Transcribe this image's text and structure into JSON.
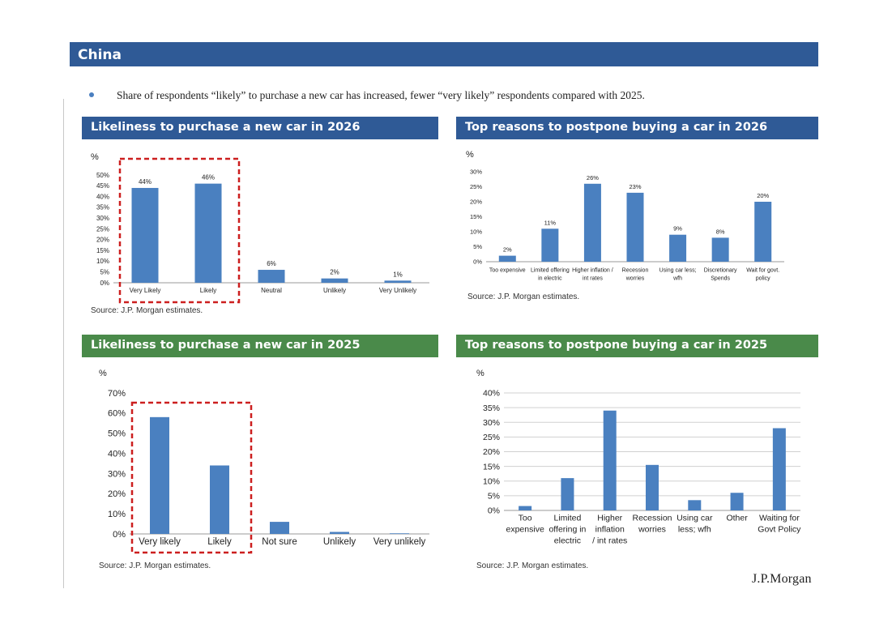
{
  "region_title": "China",
  "bullet": "Share of respondents “likely” to purchase a new car has increased, fewer “very likely” respondents compared with 2025.",
  "logo": "J.P.Morgan",
  "panels": {
    "p1": {
      "title": "Likeliness to purchase a new car in 2026",
      "unit": "%",
      "source": "Source: J.P. Morgan estimates.",
      "header_color": "#2f5a96"
    },
    "p2": {
      "title": "Top reasons to postpone buying a car in 2026",
      "unit": "%",
      "source": "Source: J.P. Morgan estimates.",
      "header_color": "#2f5a96"
    },
    "p3": {
      "title": "Likeliness to purchase a new car in 2025",
      "unit": "%",
      "source": "Source: J.P. Morgan estimates.",
      "header_color": "#4a8a4a"
    },
    "p4": {
      "title": "Top reasons to postpone buying a car in 2025",
      "unit": "%",
      "source": "Source: J.P. Morgan estimates.",
      "header_color": "#4a8a4a"
    }
  },
  "chart_data": [
    {
      "id": "c1",
      "type": "bar",
      "title": "Likeliness to purchase a new car in 2026",
      "ylabel": "%",
      "categories": [
        [
          "Very Likely"
        ],
        [
          "Likely"
        ],
        [
          "Neutral"
        ],
        [
          "Unlikely"
        ],
        [
          "Very Unlikely"
        ]
      ],
      "values": [
        44,
        46,
        6,
        2,
        1
      ],
      "data_labels": [
        "44%",
        "46%",
        "6%",
        "2%",
        "1%"
      ],
      "ylim": [
        0,
        50
      ],
      "yticks": [
        "0%",
        "5%",
        "10%",
        "15%",
        "20%",
        "25%",
        "30%",
        "35%",
        "40%",
        "45%",
        "50%"
      ],
      "bar_color": "#4a80c0",
      "highlight": "Very Likely + Likely (red dashed box)"
    },
    {
      "id": "c2",
      "type": "bar",
      "title": "Top reasons to postpone buying a car in 2026",
      "ylabel": "%",
      "categories": [
        [
          "Too expensive"
        ],
        [
          "Limited offering",
          "in electric"
        ],
        [
          "Higher inflation /",
          "int rates"
        ],
        [
          "Recession",
          "worries"
        ],
        [
          "Using car less;",
          "wfh"
        ],
        [
          "Discretionary",
          "Spends"
        ],
        [
          "Wait for govt.",
          "policy"
        ]
      ],
      "values": [
        2,
        11,
        26,
        23,
        9,
        8,
        20
      ],
      "data_labels": [
        "2%",
        "11%",
        "26%",
        "23%",
        "9%",
        "8%",
        "20%"
      ],
      "ylim": [
        0,
        30
      ],
      "yticks": [
        "0%",
        "5%",
        "10%",
        "15%",
        "20%",
        "25%",
        "30%"
      ],
      "bar_color": "#4a80c0"
    },
    {
      "id": "c3",
      "type": "bar",
      "title": "Likeliness to purchase a new car in 2025",
      "ylabel": "%",
      "categories": [
        [
          "Very likely"
        ],
        [
          "Likely"
        ],
        [
          "Not sure"
        ],
        [
          "Unlikely"
        ],
        [
          "Very unlikely"
        ]
      ],
      "values": [
        58,
        34,
        6,
        1,
        0.3
      ],
      "ylim": [
        0,
        70
      ],
      "yticks": [
        "0%",
        "10%",
        "20%",
        "30%",
        "40%",
        "50%",
        "60%",
        "70%"
      ],
      "bar_color": "#4a80c0",
      "highlight": "Very likely + Likely (red dashed box)"
    },
    {
      "id": "c4",
      "type": "bar",
      "title": "Top reasons to postpone buying a car in 2025",
      "ylabel": "%",
      "categories": [
        [
          "Too",
          "expensive"
        ],
        [
          "Limited",
          "offering in",
          "electric"
        ],
        [
          "Higher",
          "inflation",
          "/ int rates"
        ],
        [
          "Recession",
          "worries"
        ],
        [
          "Using car",
          "less; wfh"
        ],
        [
          "Other"
        ],
        [
          "Waiting for",
          "Govt Policy"
        ]
      ],
      "values": [
        1.5,
        11,
        34,
        15.5,
        3.5,
        6,
        28
      ],
      "ylim": [
        0,
        40
      ],
      "yticks": [
        "0%",
        "5%",
        "10%",
        "15%",
        "20%",
        "25%",
        "30%",
        "35%",
        "40%"
      ],
      "grid": true,
      "bar_color": "#4a80c0"
    }
  ]
}
